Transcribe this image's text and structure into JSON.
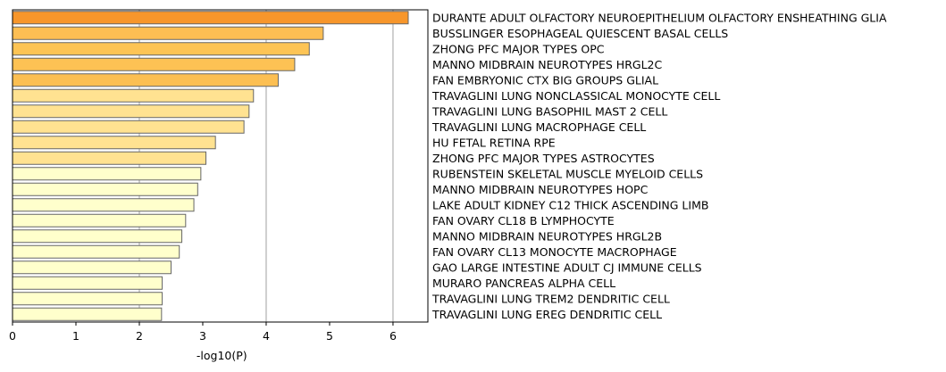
{
  "chart_data": {
    "type": "bar",
    "orientation": "horizontal",
    "xlabel": "-log10(P)",
    "ylabel": "",
    "title": "",
    "xlim": [
      0,
      6.55
    ],
    "xticks": [
      "0",
      "1",
      "2",
      "3",
      "4",
      "5",
      "6"
    ],
    "grid": "vertical gridlines at x = 2, 4, 6",
    "bar_edge_color": "#666666",
    "color_scale": "yellow-orange by value",
    "categories": [
      "DURANTE ADULT OLFACTORY NEUROEPITHELIUM OLFACTORY ENSHEATHING GLIA",
      "BUSSLINGER ESOPHAGEAL QUIESCENT BASAL CELLS",
      "ZHONG PFC MAJOR TYPES OPC",
      "MANNO MIDBRAIN NEUROTYPES HRGL2C",
      "FAN EMBRYONIC CTX BIG GROUPS GLIAL",
      "TRAVAGLINI LUNG NONCLASSICAL MONOCYTE CELL",
      "TRAVAGLINI LUNG BASOPHIL MAST 2 CELL",
      "TRAVAGLINI LUNG MACROPHAGE CELL",
      "HU FETAL RETINA RPE",
      "ZHONG PFC MAJOR TYPES ASTROCYTES",
      "RUBENSTEIN SKELETAL MUSCLE MYELOID CELLS",
      "MANNO MIDBRAIN NEUROTYPES HOPC",
      "LAKE ADULT KIDNEY C12 THICK ASCENDING LIMB",
      "FAN OVARY CL18 B LYMPHOCYTE",
      "MANNO MIDBRAIN NEUROTYPES HRGL2B",
      "FAN OVARY CL13 MONOCYTE MACROPHAGE",
      "GAO LARGE INTESTINE ADULT CJ IMMUNE CELLS",
      "MURARO PANCREAS ALPHA CELL",
      "TRAVAGLINI LUNG TREM2 DENDRITIC CELL",
      "TRAVAGLINI LUNG EREG DENDRITIC CELL"
    ],
    "values": [
      6.24,
      4.9,
      4.68,
      4.45,
      4.19,
      3.8,
      3.73,
      3.65,
      3.2,
      3.05,
      2.97,
      2.92,
      2.86,
      2.73,
      2.67,
      2.63,
      2.5,
      2.36,
      2.36,
      2.35
    ],
    "bar_colors": [
      "#F7962B",
      "#FDBE53",
      "#FDC455",
      "#FDC254",
      "#FCBF52",
      "#FFE291",
      "#FFE291",
      "#FFE291",
      "#FFE291",
      "#FFE291",
      "#FFFFCC",
      "#FFFFCC",
      "#FFFFCC",
      "#FFFFCC",
      "#FFFFCC",
      "#FFFFCC",
      "#FFFFCC",
      "#FFFFCC",
      "#FFFFCC",
      "#FFFFCC"
    ]
  }
}
